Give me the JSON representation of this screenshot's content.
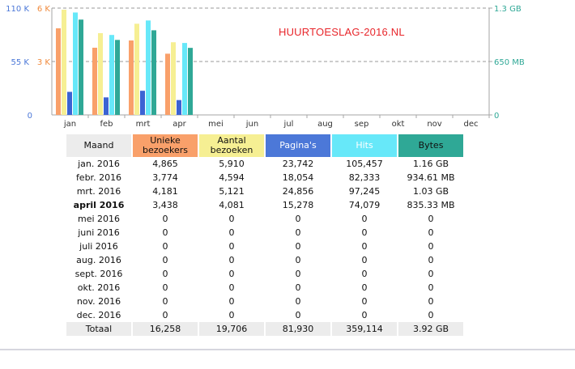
{
  "watermark": "HUURTOESLAG-2016.NL",
  "chart_data": {
    "type": "bar",
    "categories": [
      "jan",
      "feb",
      "mrt",
      "apr",
      "mei",
      "jun",
      "jul",
      "aug",
      "sep",
      "okt",
      "nov",
      "dec"
    ],
    "series": [
      {
        "name": "Unieke bezoekers",
        "color": "#f9a06a",
        "axis": "mid",
        "values": [
          4865,
          3774,
          4181,
          3438,
          0,
          0,
          0,
          0,
          0,
          0,
          0,
          0
        ]
      },
      {
        "name": "Aantal bezoeken",
        "color": "#f6ef93",
        "axis": "mid",
        "values": [
          5910,
          4594,
          5121,
          4081,
          0,
          0,
          0,
          0,
          0,
          0,
          0,
          0
        ]
      },
      {
        "name": "Pagina's",
        "color": "#3b63d3",
        "axis": "left",
        "values": [
          23742,
          18054,
          24856,
          15278,
          0,
          0,
          0,
          0,
          0,
          0,
          0,
          0
        ]
      },
      {
        "name": "Hits",
        "color": "#67e8f9",
        "axis": "left",
        "values": [
          105457,
          82333,
          97245,
          74079,
          0,
          0,
          0,
          0,
          0,
          0,
          0,
          0
        ]
      },
      {
        "name": "Bytes",
        "color": "#2fa896",
        "axis": "right",
        "values": [
          1.16,
          0.9126,
          1.03,
          0.8158,
          0,
          0,
          0,
          0,
          0,
          0,
          0,
          0
        ],
        "unit": "GB"
      }
    ],
    "axes": {
      "left": {
        "ticks": [
          "110 K",
          "55 K",
          "0"
        ],
        "max": 110000,
        "color": "#4c78d8"
      },
      "mid": {
        "ticks": [
          "6 K",
          "3 K"
        ],
        "max": 6000,
        "color": "#f08a3c"
      },
      "right": {
        "ticks": [
          "1.3 GB",
          "650 MB",
          "0"
        ],
        "max": 1.3,
        "color": "#2fa896"
      }
    },
    "grid": true
  },
  "table": {
    "headers": {
      "month": "Maand",
      "uniq": [
        "Unieke",
        "bezoekers"
      ],
      "visits": [
        "Aantal",
        "bezoeken"
      ],
      "pages": "Pagina's",
      "hits": "Hits",
      "bytes": "Bytes"
    },
    "rows": [
      {
        "month": "jan. 2016",
        "uniq": "4,865",
        "visits": "5,910",
        "pages": "23,742",
        "hits": "105,457",
        "bytes": "1.16 GB"
      },
      {
        "month": "febr. 2016",
        "uniq": "3,774",
        "visits": "4,594",
        "pages": "18,054",
        "hits": "82,333",
        "bytes": "934.61 MB"
      },
      {
        "month": "mrt. 2016",
        "uniq": "4,181",
        "visits": "5,121",
        "pages": "24,856",
        "hits": "97,245",
        "bytes": "1.03 GB"
      },
      {
        "month": "april 2016",
        "uniq": "3,438",
        "visits": "4,081",
        "pages": "15,278",
        "hits": "74,079",
        "bytes": "835.33 MB",
        "current": true
      },
      {
        "month": "mei 2016",
        "uniq": "0",
        "visits": "0",
        "pages": "0",
        "hits": "0",
        "bytes": "0"
      },
      {
        "month": "juni 2016",
        "uniq": "0",
        "visits": "0",
        "pages": "0",
        "hits": "0",
        "bytes": "0"
      },
      {
        "month": "juli 2016",
        "uniq": "0",
        "visits": "0",
        "pages": "0",
        "hits": "0",
        "bytes": "0"
      },
      {
        "month": "aug. 2016",
        "uniq": "0",
        "visits": "0",
        "pages": "0",
        "hits": "0",
        "bytes": "0"
      },
      {
        "month": "sept. 2016",
        "uniq": "0",
        "visits": "0",
        "pages": "0",
        "hits": "0",
        "bytes": "0"
      },
      {
        "month": "okt. 2016",
        "uniq": "0",
        "visits": "0",
        "pages": "0",
        "hits": "0",
        "bytes": "0"
      },
      {
        "month": "nov. 2016",
        "uniq": "0",
        "visits": "0",
        "pages": "0",
        "hits": "0",
        "bytes": "0"
      },
      {
        "month": "dec. 2016",
        "uniq": "0",
        "visits": "0",
        "pages": "0",
        "hits": "0",
        "bytes": "0"
      }
    ],
    "total": {
      "month": "Totaal",
      "uniq": "16,258",
      "visits": "19,706",
      "pages": "81,930",
      "hits": "359,114",
      "bytes": "3.92 GB"
    }
  }
}
